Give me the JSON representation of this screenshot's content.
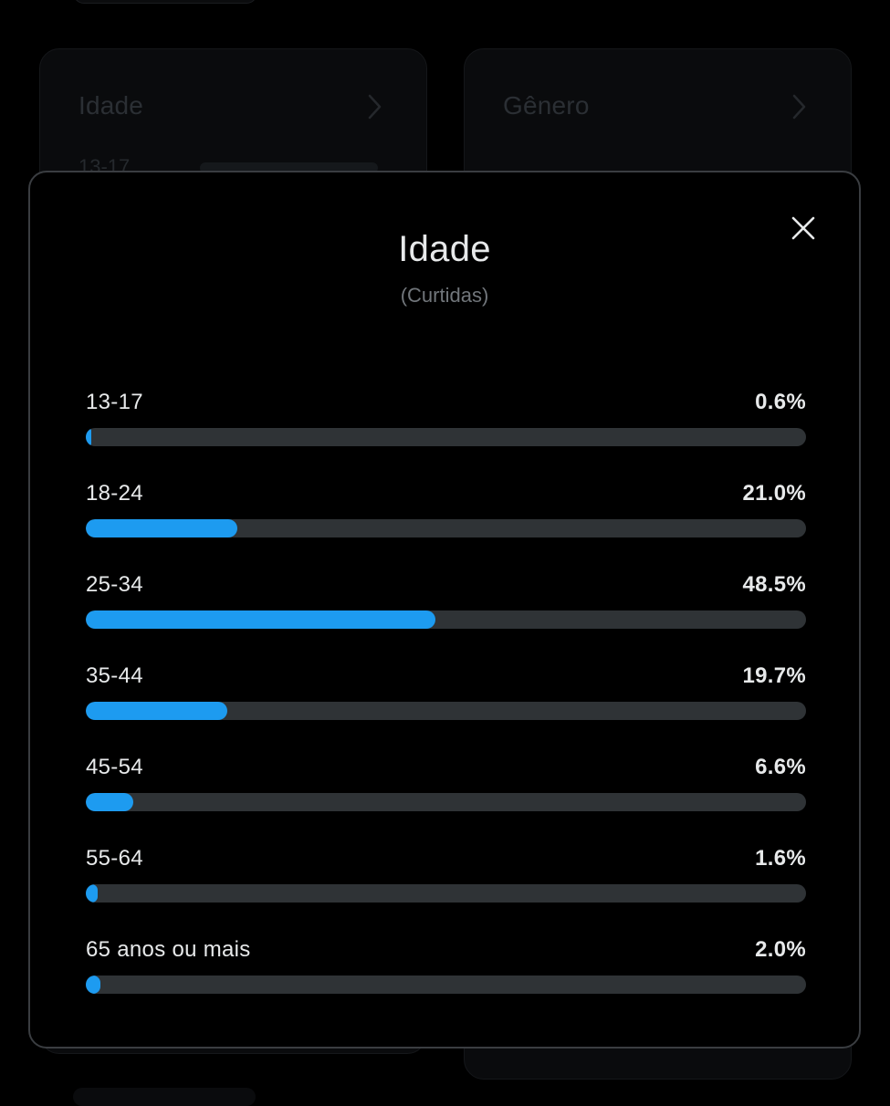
{
  "background": {
    "cards": [
      {
        "title": "Idade",
        "first_row_label": "13-17"
      },
      {
        "title": "Gênero"
      }
    ]
  },
  "modal": {
    "title": "Idade",
    "subtitle": "(Curtidas)",
    "close_icon": "close-icon",
    "accent_color": "#1d9bf0",
    "track_color": "#2f3336",
    "rows": [
      {
        "label": "13-17",
        "value_text": "0.6%",
        "percent": 0.6
      },
      {
        "label": "18-24",
        "value_text": "21.0%",
        "percent": 21.0
      },
      {
        "label": "25-34",
        "value_text": "48.5%",
        "percent": 48.5
      },
      {
        "label": "35-44",
        "value_text": "19.7%",
        "percent": 19.7
      },
      {
        "label": "45-54",
        "value_text": "6.6%",
        "percent": 6.6
      },
      {
        "label": "55-64",
        "value_text": "1.6%",
        "percent": 1.6
      },
      {
        "label": "65 anos ou mais",
        "value_text": "2.0%",
        "percent": 2.0
      }
    ]
  }
}
